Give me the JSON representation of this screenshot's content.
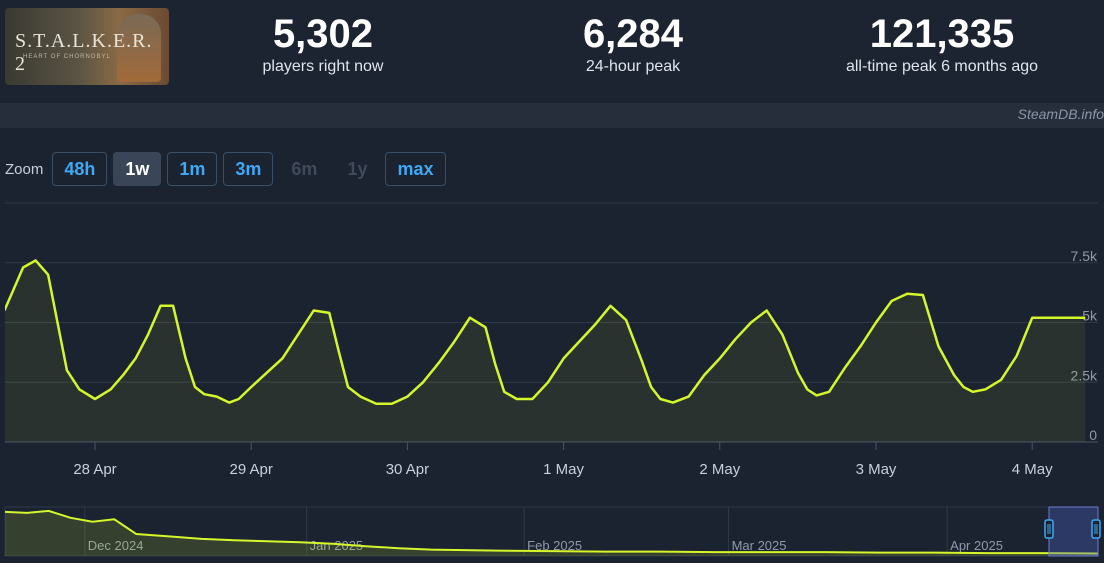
{
  "game": {
    "logo_text": "S.T.A.L.K.E.R. 2",
    "logo_subtitle": "HEART OF CHORNOBYL"
  },
  "stats": [
    {
      "value": "5,302",
      "label": "players right now"
    },
    {
      "value": "6,284",
      "label": "24-hour peak"
    },
    {
      "value": "121,335",
      "label": "all-time peak 6 months ago"
    }
  ],
  "credit": "SteamDB.info",
  "zoom": {
    "label": "Zoom",
    "buttons": [
      {
        "label": "48h",
        "state": "normal"
      },
      {
        "label": "1w",
        "state": "active"
      },
      {
        "label": "1m",
        "state": "normal"
      },
      {
        "label": "3m",
        "state": "normal"
      },
      {
        "label": "6m",
        "state": "disabled"
      },
      {
        "label": "1y",
        "state": "disabled"
      },
      {
        "label": "max",
        "state": "normal"
      }
    ]
  },
  "colors": {
    "line": "#d4f72b",
    "background": "#1b2230",
    "accent": "#3fa9f5"
  },
  "chart_data": [
    {
      "type": "line",
      "title": "",
      "xlabel": "",
      "ylabel": "",
      "ylim": [
        0,
        10000
      ],
      "yticks": [
        0,
        2500,
        5000,
        7500
      ],
      "ytick_labels": [
        "0",
        "2.5k",
        "5k",
        "7.5k"
      ],
      "x_tick_labels": [
        "28 Apr",
        "29 Apr",
        "30 Apr",
        "1 May",
        "2 May",
        "3 May",
        "4 May"
      ],
      "grid": true,
      "legend": "none",
      "series": [
        {
          "x": [
            -0.58,
            -0.46,
            -0.38,
            -0.3,
            -0.24,
            -0.18,
            -0.1,
            0.0,
            0.1,
            0.18,
            0.26,
            0.34,
            0.42,
            0.5,
            0.58,
            0.64,
            0.7,
            0.78,
            0.86,
            0.92,
            1.0,
            1.1,
            1.2,
            1.3,
            1.4,
            1.5,
            1.56,
            1.62,
            1.7,
            1.8,
            1.9,
            2.0,
            2.1,
            2.2,
            2.3,
            2.4,
            2.5,
            2.56,
            2.62,
            2.7,
            2.8,
            2.9,
            3.0,
            3.1,
            3.2,
            3.3,
            3.4,
            3.5,
            3.56,
            3.62,
            3.7,
            3.8,
            3.9,
            4.0,
            4.1,
            4.2,
            4.3,
            4.4,
            4.5,
            4.56,
            4.62,
            4.7,
            4.8,
            4.9,
            5.0,
            5.1,
            5.2,
            5.3,
            5.4,
            5.5,
            5.56,
            5.62,
            5.7,
            5.8,
            5.9,
            6.0,
            6.08,
            6.16,
            6.24,
            6.34
          ],
          "y": [
            5500,
            7300,
            7600,
            7000,
            5000,
            3000,
            2200,
            1800,
            2200,
            2800,
            3500,
            4500,
            5700,
            5700,
            3500,
            2300,
            2000,
            1900,
            1650,
            1800,
            2300,
            2900,
            3500,
            4500,
            5500,
            5400,
            3800,
            2300,
            1900,
            1600,
            1600,
            1900,
            2500,
            3300,
            4200,
            5200,
            4800,
            3300,
            2100,
            1800,
            1800,
            2500,
            3500,
            4200,
            4900,
            5700,
            5100,
            3400,
            2300,
            1800,
            1650,
            1900,
            2800,
            3500,
            4300,
            5000,
            5500,
            4500,
            2900,
            2200,
            1950,
            2100,
            3100,
            4000,
            5000,
            5900,
            6200,
            6150,
            4000,
            2800,
            2300,
            2100,
            2200,
            2600,
            3600,
            5200,
            5200,
            5200,
            5200,
            5200
          ]
        }
      ]
    },
    {
      "type": "area",
      "title": "",
      "x_tick_labels": [
        "Dec 2024",
        "Jan 2025",
        "Feb 2025",
        "Mar 2025",
        "Apr 2025"
      ],
      "grid": true,
      "legend": "none",
      "series": [
        {
          "x": [
            0.0,
            0.02,
            0.04,
            0.06,
            0.08,
            0.1,
            0.12,
            0.15,
            0.18,
            0.21,
            0.24,
            0.27,
            0.3,
            0.33,
            0.36,
            0.39,
            0.42,
            0.45,
            0.5,
            0.55,
            0.6,
            0.65,
            0.7,
            0.75,
            0.8,
            0.85,
            0.9,
            0.95,
            1.0
          ],
          "y": [
            90,
            88,
            92,
            78,
            70,
            75,
            45,
            40,
            35,
            32,
            30,
            28,
            25,
            20,
            16,
            13,
            12,
            11,
            10,
            9,
            9,
            8,
            8,
            8,
            7,
            7,
            6,
            6,
            5
          ]
        }
      ]
    }
  ]
}
